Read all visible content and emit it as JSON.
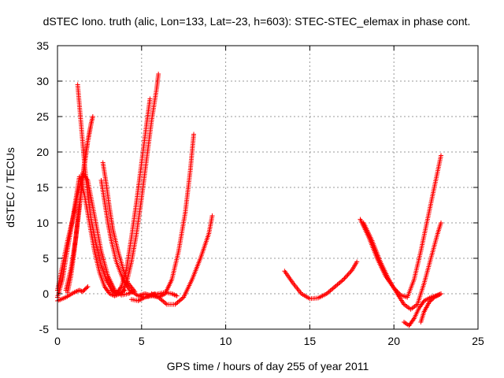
{
  "chart_data": {
    "type": "scatter",
    "title": "dSTEC Iono. truth (alic, Lon=133, Lat=-23, h=603): STEC-STEC_elemax in phase cont.",
    "xlabel": "GPS time / hours of day 255 of year 2011",
    "ylabel": "dSTEC  / TECUs",
    "xlim": [
      0,
      25
    ],
    "ylim": [
      -5,
      35
    ],
    "xticks": [
      0,
      5,
      10,
      15,
      20,
      25
    ],
    "yticks": [
      -5,
      0,
      5,
      10,
      15,
      20,
      25,
      30,
      35
    ],
    "grid": true,
    "marker": "+",
    "color": "#ff0000",
    "series": [
      {
        "x": [
          0.0,
          0.3,
          0.6,
          1.0,
          1.2,
          1.5,
          1.8,
          2.2,
          2.6,
          3.0,
          3.4,
          3.8,
          4.2,
          4.5
        ],
        "y": [
          0.5,
          4.0,
          7.5,
          11.5,
          14.0,
          17.0,
          16.0,
          11.0,
          6.0,
          2.5,
          0.5,
          -0.2,
          0.0,
          0.3
        ]
      },
      {
        "x": [
          0.0,
          0.3,
          0.5,
          0.8,
          1.1,
          1.3,
          1.6,
          1.9,
          2.2,
          2.5,
          2.8,
          3.1,
          3.4,
          3.7,
          4.0
        ],
        "y": [
          -0.5,
          2.0,
          5.0,
          9.0,
          13.5,
          16.5,
          14.0,
          10.0,
          6.0,
          3.0,
          1.0,
          0.0,
          -0.3,
          0.0,
          0.5
        ]
      },
      {
        "x": [
          1.2,
          1.4,
          1.6,
          1.8,
          2.0,
          2.3,
          2.6,
          2.9,
          3.2,
          3.5
        ],
        "y": [
          29.5,
          24.0,
          18.5,
          14.0,
          10.5,
          7.0,
          4.0,
          2.0,
          0.7,
          0.0
        ]
      },
      {
        "x": [
          0.5,
          0.8,
          1.1,
          1.4,
          1.6,
          1.8,
          2.0,
          2.1
        ],
        "y": [
          0.5,
          3.5,
          8.0,
          14.0,
          18.0,
          21.5,
          24.0,
          25.0
        ]
      },
      {
        "x": [
          0.6,
          0.8,
          1.0,
          1.2,
          1.4,
          1.6,
          1.8,
          2.0
        ],
        "y": [
          0.2,
          2.5,
          6.0,
          10.5,
          14.5,
          18.5,
          21.5,
          24.0
        ]
      },
      {
        "x": [
          2.7,
          2.9,
          3.1,
          3.3,
          3.6,
          3.9,
          4.2,
          4.6
        ],
        "y": [
          18.5,
          15.5,
          12.0,
          9.0,
          6.0,
          3.5,
          1.5,
          0.3
        ]
      },
      {
        "x": [
          0.0,
          0.5,
          1.0,
          1.3,
          1.5,
          1.8
        ],
        "y": [
          -1.0,
          -0.5,
          0.2,
          0.5,
          0.3,
          1.0
        ]
      },
      {
        "x": [
          2.6,
          2.8,
          3.0,
          3.2,
          3.5,
          3.9,
          4.3,
          4.8,
          5.2,
          5.5,
          5.8
        ],
        "y": [
          16.0,
          13.0,
          10.0,
          7.5,
          4.5,
          2.0,
          0.5,
          -0.3,
          0.0,
          -0.2,
          0.0
        ]
      },
      {
        "x": [
          3.2,
          3.5,
          3.8,
          4.1,
          4.4,
          4.7,
          5.0,
          5.3,
          5.5
        ],
        "y": [
          0.5,
          0.0,
          1.0,
          3.5,
          8.0,
          13.0,
          18.5,
          24.0,
          27.5
        ]
      },
      {
        "x": [
          3.8,
          4.1,
          4.4,
          4.7,
          5.0,
          5.3,
          5.6,
          5.9,
          6.0
        ],
        "y": [
          0.0,
          1.5,
          4.5,
          8.5,
          13.5,
          19.0,
          24.5,
          29.0,
          31.0
        ]
      },
      {
        "x": [
          4.4,
          4.8,
          5.2,
          5.6,
          5.8
        ],
        "y": [
          -0.8,
          -1.0,
          -0.5,
          -0.2,
          0.0
        ]
      },
      {
        "x": [
          4.8,
          5.2,
          5.6,
          6.0,
          6.4,
          6.8,
          7.1
        ],
        "y": [
          -0.3,
          -0.5,
          -0.3,
          0.0,
          0.2,
          0.0,
          -0.3
        ]
      },
      {
        "x": [
          5.6,
          6.0,
          6.4,
          6.8,
          7.2,
          7.6,
          7.9,
          8.1
        ],
        "y": [
          0.0,
          -0.5,
          0.0,
          2.0,
          6.0,
          11.5,
          17.5,
          22.5
        ]
      },
      {
        "x": [
          5.6,
          6.0,
          6.5,
          7.0,
          7.5,
          8.0,
          8.5,
          9.0,
          9.2
        ],
        "y": [
          -0.3,
          -0.5,
          -1.5,
          -1.5,
          -0.5,
          2.0,
          5.0,
          8.5,
          11.0
        ]
      },
      {
        "x": [
          13.5,
          14.0,
          14.5,
          15.0,
          15.5,
          16.0,
          16.5,
          17.0,
          17.5,
          17.8
        ],
        "y": [
          3.2,
          1.5,
          0.0,
          -0.7,
          -0.6,
          0.0,
          1.0,
          2.0,
          3.3,
          4.5
        ]
      },
      {
        "x": [
          18.0,
          18.5,
          19.0,
          19.5,
          20.0,
          20.4,
          20.8,
          21.2,
          21.6,
          22.0,
          22.4,
          22.8
        ],
        "y": [
          10.5,
          8.0,
          5.0,
          2.5,
          0.8,
          -0.2,
          -0.5,
          2.0,
          6.0,
          10.5,
          15.0,
          19.5
        ]
      },
      {
        "x": [
          18.2,
          18.7,
          19.2,
          19.7,
          20.2,
          20.6,
          21.0,
          21.4,
          21.8,
          22.2,
          22.6,
          22.8
        ],
        "y": [
          10.0,
          7.5,
          4.5,
          2.0,
          0.0,
          -1.5,
          -2.2,
          -1.5,
          1.5,
          5.0,
          8.5,
          10.0
        ]
      },
      {
        "x": [
          20.6,
          20.9,
          21.2,
          21.5,
          21.8,
          22.2,
          22.6,
          22.8
        ],
        "y": [
          -4.0,
          -4.5,
          -3.5,
          -2.0,
          -1.0,
          -0.5,
          -0.2,
          0.0
        ]
      },
      {
        "x": [
          21.6,
          21.8,
          22.1,
          22.4,
          22.8
        ],
        "y": [
          -4.0,
          -2.5,
          -1.2,
          -0.5,
          0.0
        ]
      }
    ]
  }
}
